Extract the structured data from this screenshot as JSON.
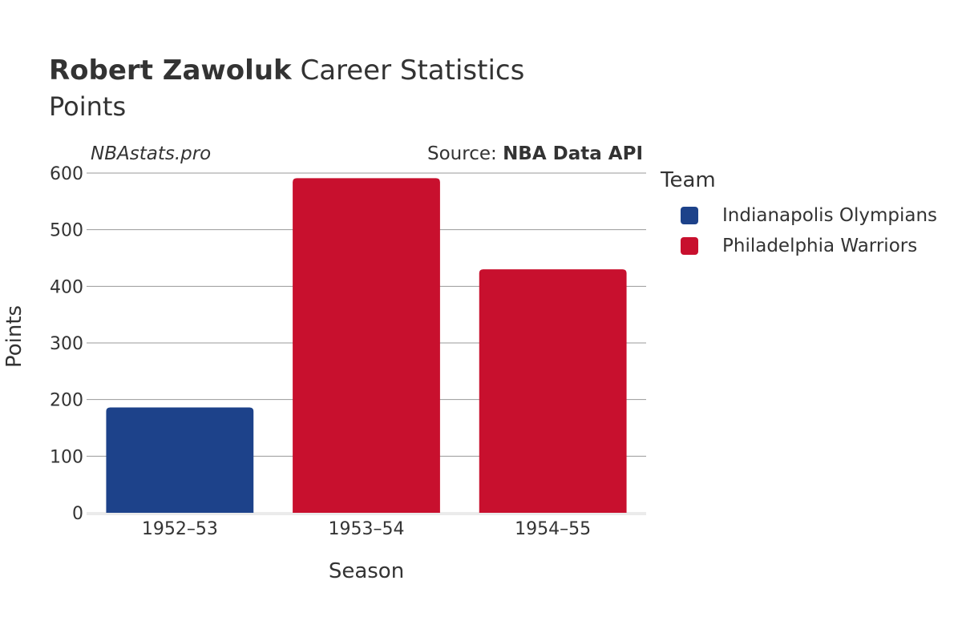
{
  "title": {
    "bold": "Robert Zawoluk",
    "rest": "Career Statistics"
  },
  "subtitle": "Points",
  "credit": {
    "site": "NBAstats.pro",
    "source_prefix": "Source: ",
    "source_name": "NBA Data API"
  },
  "legend": {
    "title": "Team",
    "items": [
      {
        "label": "Indianapolis Olympians",
        "color": "#1d428a"
      },
      {
        "label": "Philadelphia Warriors",
        "color": "#c8102e"
      }
    ]
  },
  "chart_data": {
    "type": "bar",
    "title": "Robert Zawoluk Career Statistics",
    "subtitle": "Points",
    "xlabel": "Season",
    "ylabel": "Points",
    "categories": [
      "1952–53",
      "1953–54",
      "1954–55"
    ],
    "values": [
      186,
      591,
      430
    ],
    "teams": [
      "Indianapolis Olympians",
      "Philadelphia Warriors",
      "Philadelphia Warriors"
    ],
    "ylim": [
      0,
      600
    ],
    "yticks": [
      0,
      100,
      200,
      300,
      400,
      500,
      600
    ],
    "grid": true,
    "legend_position": "right",
    "colors": {
      "Indianapolis Olympians": "#1d428a",
      "Philadelphia Warriors": "#c8102e"
    }
  }
}
